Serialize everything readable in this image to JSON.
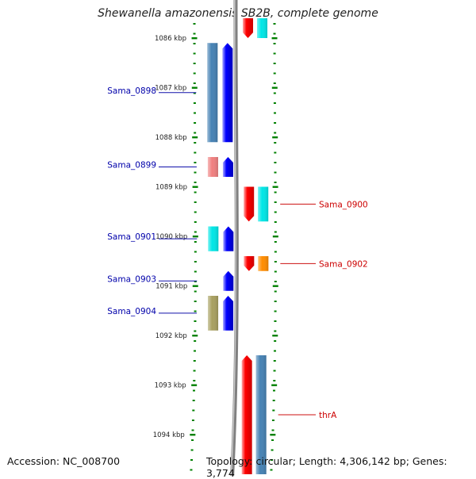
{
  "title": "Shewanella amazonensis SB2B, complete genome",
  "footer": {
    "accession": "Accession: NC_008700",
    "summary": "Topology: circular; Length: 4,306,142 bp; Genes: 3,774"
  },
  "scale": {
    "unit": "kbp",
    "labels": [
      "1086 kbp",
      "1087 kbp",
      "1088 kbp",
      "1089 kbp",
      "1090 kbp",
      "1091 kbp",
      "1092 kbp",
      "1093 kbp",
      "1094 kbp"
    ]
  },
  "genes": [
    {
      "name": "",
      "side": "right",
      "start_kbp": 1085.6,
      "end_kbp": 1086.0,
      "strand": "reverse",
      "color": "#ff0000",
      "track_color": "#00e6e6"
    },
    {
      "name": "Sama_0898",
      "side": "left",
      "start_kbp": 1086.1,
      "end_kbp": 1088.1,
      "strand": "forward",
      "color": "#0000ff",
      "track_color": "#4682b4"
    },
    {
      "name": "Sama_0899",
      "side": "left",
      "start_kbp": 1088.4,
      "end_kbp": 1088.8,
      "strand": "forward",
      "color": "#0000ff",
      "track_color": "#f08080"
    },
    {
      "name": "Sama_0900",
      "side": "right",
      "start_kbp": 1089.0,
      "end_kbp": 1089.7,
      "strand": "reverse",
      "color": "#ff0000",
      "track_color": "#00e6e6"
    },
    {
      "name": "Sama_0901",
      "side": "left",
      "start_kbp": 1089.8,
      "end_kbp": 1090.3,
      "strand": "forward",
      "color": "#0000ff",
      "track_color": "#00e6e6"
    },
    {
      "name": "Sama_0902",
      "side": "right",
      "start_kbp": 1090.4,
      "end_kbp": 1090.7,
      "strand": "reverse",
      "color": "#ff0000",
      "track_color": "#ff8c00"
    },
    {
      "name": "Sama_0903",
      "side": "left",
      "start_kbp": 1090.7,
      "end_kbp": 1091.1,
      "strand": "forward",
      "color": "#0000ff",
      "track_color": ""
    },
    {
      "name": "Sama_0904",
      "side": "left",
      "start_kbp": 1091.2,
      "end_kbp": 1091.9,
      "strand": "forward",
      "color": "#0000ff",
      "track_color": "#a8a060"
    },
    {
      "name": "thrA",
      "side": "right",
      "start_kbp": 1092.4,
      "end_kbp": 1094.8,
      "strand": "forward",
      "color": "#ff0000",
      "track_color": "#4682b4"
    }
  ],
  "colors": {
    "backbone": "#808080",
    "tick": "#008000",
    "left_label": "#0000aa",
    "right_label": "#cc0000"
  }
}
